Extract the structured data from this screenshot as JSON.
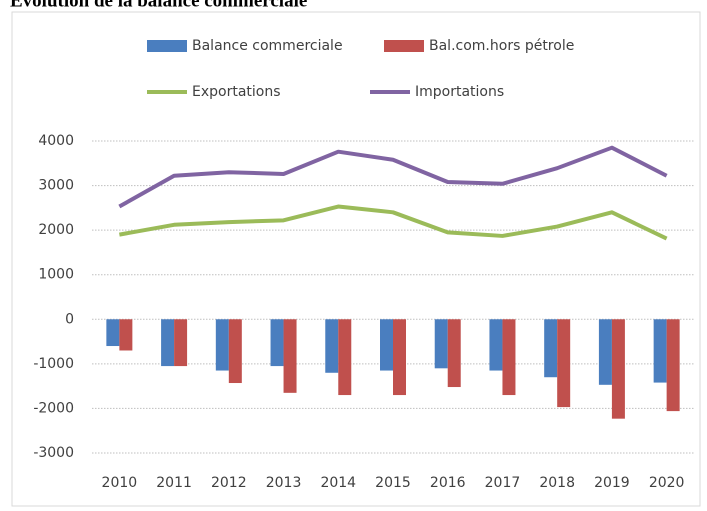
{
  "chart_data": {
    "type": "combo",
    "title": "Evolution de la balance commerciale",
    "categories": [
      "2010",
      "2011",
      "2012",
      "2013",
      "2014",
      "2015",
      "2016",
      "2017",
      "2018",
      "2019",
      "2020"
    ],
    "series": [
      {
        "name": "Balance commerciale",
        "type": "bar",
        "color": "#4a7ebf",
        "values": [
          -600,
          -1050,
          -1150,
          -1050,
          -1200,
          -1150,
          -1100,
          -1150,
          -1300,
          -1470,
          -1420
        ]
      },
      {
        "name": "Bal.com.hors pétrole",
        "type": "bar",
        "color": "#c0504d",
        "values": [
          -700,
          -1050,
          -1430,
          -1650,
          -1700,
          -1700,
          -1520,
          -1700,
          -1970,
          -2230,
          -2060
        ]
      },
      {
        "name": "Exportations",
        "type": "line",
        "color": "#9bbb59",
        "values": [
          1900,
          2120,
          2180,
          2220,
          2530,
          2400,
          1950,
          1870,
          2080,
          2400,
          1810
        ]
      },
      {
        "name": "Importations",
        "type": "line",
        "color": "#8064a2",
        "values": [
          2530,
          3220,
          3300,
          3260,
          3760,
          3580,
          3080,
          3040,
          3390,
          3850,
          3220
        ]
      }
    ],
    "ylim": [
      -3000,
      4000
    ],
    "yticks": [
      -3000,
      -2000,
      -1000,
      0,
      1000,
      2000,
      3000,
      4000
    ],
    "grid": true
  }
}
